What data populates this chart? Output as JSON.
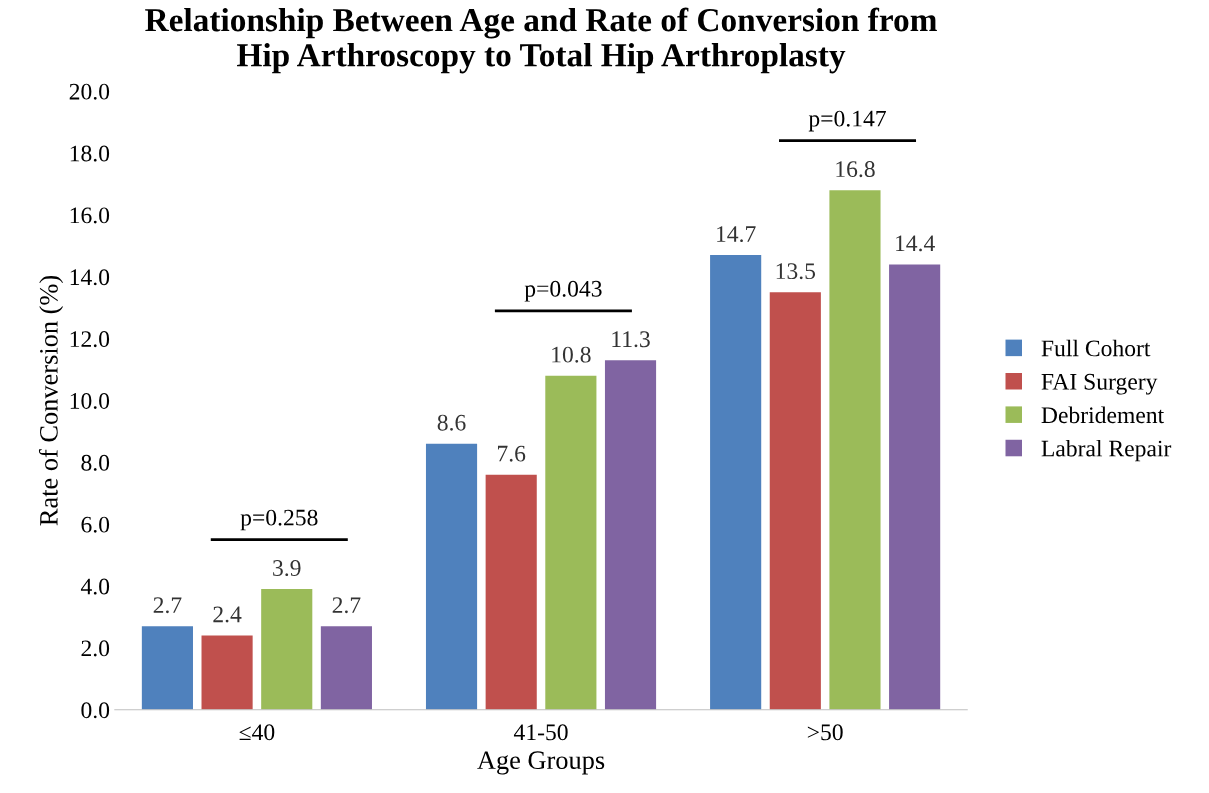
{
  "chart_data": {
    "type": "bar",
    "title": "Relationship Between Age and Rate of Conversion from\nHip Arthroscopy to Total Hip Arthroplasty",
    "xlabel": "Age Groups",
    "ylabel": "Rate of Conversion (%)",
    "categories": [
      "≤40",
      "41-50",
      ">50"
    ],
    "series": [
      {
        "name": "Full Cohort",
        "color": "#4f81bd",
        "values": [
          2.7,
          8.6,
          14.7
        ]
      },
      {
        "name": "FAI Surgery",
        "color": "#c0504d",
        "values": [
          2.4,
          7.6,
          13.5
        ]
      },
      {
        "name": "Debridement",
        "color": "#9bbb59",
        "values": [
          3.9,
          10.8,
          16.8
        ]
      },
      {
        "name": "Labral Repair",
        "color": "#8064a2",
        "values": [
          2.7,
          11.3,
          14.4
        ]
      }
    ],
    "ylim": [
      0,
      20
    ],
    "yticks": [
      {
        "value": 0,
        "label": "0.0"
      },
      {
        "value": 2,
        "label": "2.0"
      },
      {
        "value": 4,
        "label": "4.0"
      },
      {
        "value": 6,
        "label": "6.0"
      },
      {
        "value": 8,
        "label": "8.0"
      },
      {
        "value": 10,
        "label": "10.0"
      },
      {
        "value": 12,
        "label": "12.0"
      },
      {
        "value": 14,
        "label": "14.0"
      },
      {
        "value": 16,
        "label": "16.0"
      },
      {
        "value": 18,
        "label": "18.0"
      },
      {
        "value": 20,
        "label": "20.0"
      }
    ],
    "annotations": [
      "p=0.258",
      "p=0.043",
      "p=0.147"
    ],
    "data_labels": true,
    "legend": "right",
    "grid": false
  }
}
